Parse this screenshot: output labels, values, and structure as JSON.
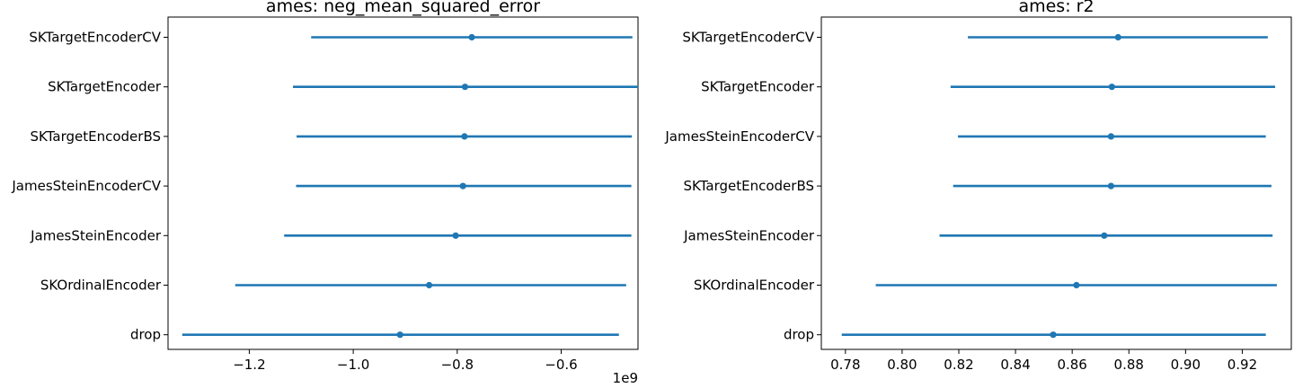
{
  "chart_data": [
    {
      "type": "scatter",
      "title": "ames: neg_mean_squared_error",
      "xlabel": "",
      "ylabel": "",
      "x_offset_label": "1e9",
      "xlim": [
        -1.3563,
        -0.4522
      ],
      "x_ticks": [
        -1.2,
        -1.0,
        -0.8,
        -0.6
      ],
      "x_tick_labels": [
        "−1.2",
        "−1.0",
        "−0.8",
        "−0.6"
      ],
      "categories": [
        "SKTargetEncoderCV",
        "SKTargetEncoder",
        "SKTargetEncoderBS",
        "JamesSteinEncoderCV",
        "JamesSteinEncoder",
        "SKOrdinalEncoder",
        "drop"
      ],
      "series": [
        {
          "mean": [
            -0.772,
            -0.785,
            -0.786,
            -0.789,
            -0.803,
            -0.854,
            -0.91
          ],
          "lower": [
            -1.081,
            -1.116,
            -1.109,
            -1.11,
            -1.133,
            -1.227,
            -1.329
          ],
          "upper": [
            -0.463,
            -0.452,
            -0.464,
            -0.465,
            -0.465,
            -0.475,
            -0.489
          ]
        }
      ],
      "color": "#1f77b4",
      "grid": false
    },
    {
      "type": "scatter",
      "title": "ames: r2",
      "xlabel": "",
      "ylabel": "",
      "xlim": [
        0.7715,
        0.9373
      ],
      "x_ticks": [
        0.78,
        0.8,
        0.82,
        0.84,
        0.86,
        0.88,
        0.9,
        0.92
      ],
      "x_tick_labels": [
        "0.78",
        "0.80",
        "0.82",
        "0.84",
        "0.86",
        "0.88",
        "0.90",
        "0.92"
      ],
      "categories": [
        "SKTargetEncoderCV",
        "SKTargetEncoder",
        "JamesSteinEncoderCV",
        "SKTargetEncoderBS",
        "JamesSteinEncoder",
        "SKOrdinalEncoder",
        "drop"
      ],
      "series": [
        {
          "mean": [
            0.8762,
            0.874,
            0.8737,
            0.8737,
            0.8713,
            0.8615,
            0.8533
          ],
          "lower": [
            0.8232,
            0.8171,
            0.8197,
            0.818,
            0.8132,
            0.7907,
            0.7787
          ],
          "upper": [
            0.929,
            0.9316,
            0.9283,
            0.9303,
            0.9307,
            0.9322,
            0.9283
          ]
        }
      ],
      "color": "#1f77b4",
      "grid": false
    }
  ]
}
